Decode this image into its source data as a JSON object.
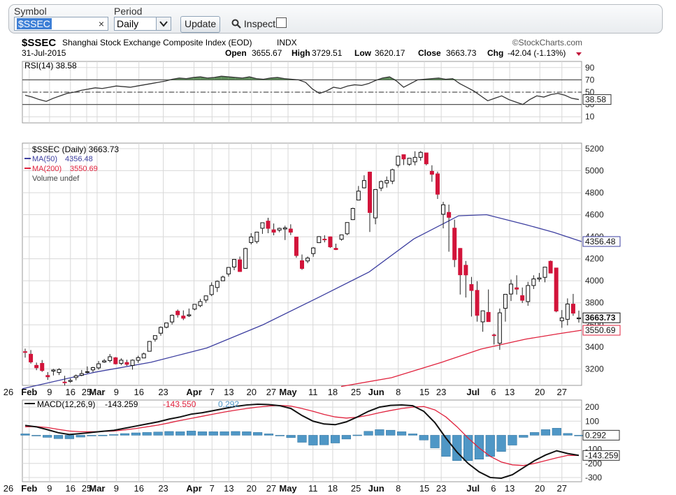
{
  "toolbar": {
    "symbol_label": "Symbol",
    "symbol_value": "$SSEC",
    "clear_glyph": "×",
    "period_label": "Period",
    "period_value": "Daily",
    "period_options": [
      "Daily"
    ],
    "update_label": "Update",
    "inspect_label": "Inspect"
  },
  "header": {
    "title": "$SSEC",
    "subtitle": "Shanghai Stock Exchange Composite Index (EOD)",
    "exchange": "INDX",
    "brand": "©StockCharts.com",
    "date": "31-Jul-2015",
    "open_label": "Open",
    "open": "3655.67",
    "high_label": "High",
    "high": "3729.51",
    "low_label": "Low",
    "low": "3620.17",
    "close_label": "Close",
    "close": "3663.73",
    "chg_label": "Chg",
    "chg": "-42.04 (-1.13%)"
  },
  "colors": {
    "up": "#ffffff",
    "down": "#d2143a",
    "ma50": "#3d3fa0",
    "ma200": "#e0223d",
    "rsi_fill": "#5e8c5a",
    "histogram": "#4f97c6",
    "grid": "#d8d8d8"
  },
  "chart_data": [
    {
      "type": "line",
      "title": "RSI(14) 38.58",
      "ylim": [
        0,
        100
      ],
      "y_ticks": [
        90,
        70,
        50,
        30,
        10
      ],
      "reference_lines": [
        70,
        50,
        30
      ],
      "last_value_label": "38.58",
      "x_dates_approx": [
        "2015-01-26",
        "2015-07-31"
      ],
      "values": [
        45,
        42,
        38,
        35,
        40,
        44,
        48,
        50,
        53,
        55,
        57,
        56,
        58,
        60,
        59,
        58,
        60,
        62,
        64,
        66,
        68,
        71,
        73,
        72,
        74,
        75,
        73,
        74,
        76,
        75,
        74,
        73,
        75,
        72,
        71,
        73,
        74,
        72,
        71,
        70,
        66,
        55,
        48,
        52,
        58,
        56,
        60,
        62,
        61,
        64,
        69,
        73,
        75,
        68,
        58,
        64,
        70,
        71,
        72,
        73,
        71,
        72,
        64,
        58,
        52,
        44,
        36,
        40,
        44,
        38,
        34,
        30,
        38,
        44,
        42,
        46,
        48,
        45,
        40,
        38
      ]
    },
    {
      "type": "candlestick",
      "title": "$SSEC (Daily) 3663.73",
      "legend": [
        {
          "name": "MA(50)",
          "value": "4356.48"
        },
        {
          "name": "MA(200)",
          "value": "3550.69"
        },
        {
          "name": "Volume undef",
          "value": ""
        }
      ],
      "ylim": [
        3050,
        5250
      ],
      "y_ticks": [
        5200,
        5000,
        4800,
        4600,
        4400,
        4200,
        4000,
        3800,
        3600,
        3400,
        3200
      ],
      "x_tick_labels": [
        "26",
        "Feb",
        "9",
        "16",
        "25",
        "Mar",
        "9",
        "16",
        "23",
        "Apr",
        "7",
        "13",
        "20",
        "27",
        "May",
        "11",
        "18",
        "25",
        "Jun",
        "8",
        "15",
        "23",
        "Jul",
        "6",
        "13",
        "20",
        "27"
      ],
      "price_tags": [
        "4356.48",
        "3663.73",
        "3550.69"
      ],
      "candles": [
        {
          "o": 3356,
          "h": 3384,
          "l": 3302,
          "c": 3354
        },
        {
          "o": 3333,
          "h": 3371,
          "l": 3248,
          "c": 3263
        },
        {
          "o": 3232,
          "h": 3257,
          "l": 3188,
          "c": 3210
        },
        {
          "o": 3250,
          "h": 3280,
          "l": 3173,
          "c": 3185
        },
        {
          "o": 3140,
          "h": 3171,
          "l": 3100,
          "c": 3128
        },
        {
          "o": 3180,
          "h": 3200,
          "l": 3140,
          "c": 3190
        },
        {
          "o": 3167,
          "h": 3206,
          "l": 3144,
          "c": 3194
        },
        {
          "o": 3080,
          "h": 3137,
          "l": 3049,
          "c": 3076
        },
        {
          "o": 3086,
          "h": 3113,
          "l": 3074,
          "c": 3095
        },
        {
          "o": 3121,
          "h": 3149,
          "l": 3096,
          "c": 3137
        },
        {
          "o": 3142,
          "h": 3190,
          "l": 3133,
          "c": 3157
        },
        {
          "o": 3173,
          "h": 3222,
          "l": 3159,
          "c": 3174
        },
        {
          "o": 3191,
          "h": 3219,
          "l": 3170,
          "c": 3211
        },
        {
          "o": 3209,
          "h": 3272,
          "l": 3193,
          "c": 3246
        },
        {
          "o": 3262,
          "h": 3289,
          "l": 3255,
          "c": 3273
        },
        {
          "o": 3275,
          "h": 3335,
          "l": 3258,
          "c": 3310
        },
        {
          "o": 3301,
          "h": 3307,
          "l": 3240,
          "c": 3246
        },
        {
          "o": 3250,
          "h": 3296,
          "l": 3234,
          "c": 3279
        },
        {
          "o": 3258,
          "h": 3283,
          "l": 3227,
          "c": 3241
        },
        {
          "o": 3231,
          "h": 3286,
          "l": 3193,
          "c": 3279
        },
        {
          "o": 3278,
          "h": 3319,
          "l": 3255,
          "c": 3302
        },
        {
          "o": 3299,
          "h": 3348,
          "l": 3299,
          "c": 3336
        },
        {
          "o": 3360,
          "h": 3453,
          "l": 3357,
          "c": 3449
        },
        {
          "o": 3469,
          "h": 3502,
          "l": 3447,
          "c": 3502
        },
        {
          "o": 3524,
          "h": 3586,
          "l": 3501,
          "c": 3577
        },
        {
          "o": 3578,
          "h": 3617,
          "l": 3568,
          "c": 3617
        },
        {
          "o": 3626,
          "h": 3694,
          "l": 3603,
          "c": 3687
        },
        {
          "o": 3724,
          "h": 3739,
          "l": 3666,
          "c": 3691
        },
        {
          "o": 3680,
          "h": 3731,
          "l": 3643,
          "c": 3660
        },
        {
          "o": 3682,
          "h": 3748,
          "l": 3671,
          "c": 3691
        },
        {
          "o": 3743,
          "h": 3786,
          "l": 3732,
          "c": 3786
        },
        {
          "o": 3774,
          "h": 3835,
          "l": 3760,
          "c": 3811
        },
        {
          "o": 3825,
          "h": 3866,
          "l": 3800,
          "c": 3863
        },
        {
          "o": 3875,
          "h": 3986,
          "l": 3861,
          "c": 3957
        },
        {
          "o": 3939,
          "h": 4003,
          "l": 3898,
          "c": 3995
        },
        {
          "o": 4000,
          "h": 4047,
          "l": 3998,
          "c": 4034
        },
        {
          "o": 4062,
          "h": 4123,
          "l": 4038,
          "c": 4121
        },
        {
          "o": 4125,
          "h": 4197,
          "l": 4096,
          "c": 4194
        },
        {
          "o": 4190,
          "h": 4220,
          "l": 4080,
          "c": 4084
        },
        {
          "o": 4113,
          "h": 4300,
          "l": 4108,
          "c": 4293
        },
        {
          "o": 4347,
          "h": 4432,
          "l": 4330,
          "c": 4398
        },
        {
          "o": 4356,
          "h": 4444,
          "l": 4338,
          "c": 4442
        },
        {
          "o": 4477,
          "h": 4527,
          "l": 4426,
          "c": 4527
        },
        {
          "o": 4542,
          "h": 4572,
          "l": 4432,
          "c": 4476
        },
        {
          "o": 4463,
          "h": 4520,
          "l": 4413,
          "c": 4441
        },
        {
          "o": 4460,
          "h": 4483,
          "l": 4441,
          "c": 4476
        },
        {
          "o": 4470,
          "h": 4500,
          "l": 4370,
          "c": 4480
        },
        {
          "o": 4470,
          "h": 4513,
          "l": 4415,
          "c": 4441
        },
        {
          "o": 4397,
          "h": 4398,
          "l": 4209,
          "c": 4229
        },
        {
          "o": 4182,
          "h": 4239,
          "l": 4099,
          "c": 4112
        },
        {
          "o": 4180,
          "h": 4221,
          "l": 4160,
          "c": 4206
        },
        {
          "o": 4247,
          "h": 4306,
          "l": 4218,
          "c": 4298
        },
        {
          "o": 4346,
          "h": 4405,
          "l": 4346,
          "c": 4401
        },
        {
          "o": 4378,
          "h": 4413,
          "l": 4349,
          "c": 4375
        },
        {
          "o": 4399,
          "h": 4402,
          "l": 4298,
          "c": 4308
        },
        {
          "o": 4295,
          "h": 4337,
          "l": 4279,
          "c": 4283
        },
        {
          "o": 4377,
          "h": 4417,
          "l": 4364,
          "c": 4417
        },
        {
          "o": 4427,
          "h": 4529,
          "l": 4414,
          "c": 4529
        },
        {
          "o": 4555,
          "h": 4663,
          "l": 4552,
          "c": 4657
        },
        {
          "o": 4733,
          "h": 4861,
          "l": 4731,
          "c": 4814
        },
        {
          "o": 4844,
          "h": 4958,
          "l": 4838,
          "c": 4910
        },
        {
          "o": 4987,
          "h": 4991,
          "l": 4443,
          "c": 4620
        },
        {
          "o": 4571,
          "h": 4832,
          "l": 4513,
          "c": 4829
        },
        {
          "o": 4842,
          "h": 4911,
          "l": 4815,
          "c": 4901
        },
        {
          "o": 4888,
          "h": 4947,
          "l": 4846,
          "c": 4910
        },
        {
          "o": 4905,
          "h": 5018,
          "l": 4878,
          "c": 5008
        },
        {
          "o": 5050,
          "h": 5131,
          "l": 5031,
          "c": 5131
        },
        {
          "o": 5145,
          "h": 5147,
          "l": 5051,
          "c": 5106
        },
        {
          "o": 5058,
          "h": 5115,
          "l": 5045,
          "c": 5113
        },
        {
          "o": 5080,
          "h": 5176,
          "l": 5048,
          "c": 5121
        },
        {
          "o": 5121,
          "h": 5178,
          "l": 5090,
          "c": 5166
        },
        {
          "o": 5161,
          "h": 5164,
          "l": 5048,
          "c": 5062
        },
        {
          "o": 4994,
          "h": 5049,
          "l": 4899,
          "c": 4967
        },
        {
          "o": 4971,
          "h": 4991,
          "l": 4743,
          "c": 4786
        },
        {
          "o": 4604,
          "h": 4717,
          "l": 4476,
          "c": 4690
        },
        {
          "o": 4621,
          "h": 4692,
          "l": 4264,
          "c": 4576
        },
        {
          "o": 4478,
          "h": 4555,
          "l": 4124,
          "c": 4192
        },
        {
          "o": 4294,
          "h": 4297,
          "l": 3875,
          "c": 4054
        },
        {
          "o": 4141,
          "h": 4180,
          "l": 3848,
          "c": 4053
        },
        {
          "o": 3966,
          "h": 4035,
          "l": 3675,
          "c": 3912
        },
        {
          "o": 3913,
          "h": 3996,
          "l": 3629,
          "c": 3686
        },
        {
          "o": 3627,
          "h": 3725,
          "l": 3537,
          "c": 3727
        },
        {
          "o": 3713,
          "h": 3921,
          "l": 3648,
          "c": 3629
        },
        {
          "o": 3508,
          "h": 3520,
          "l": 3421,
          "c": 3507
        },
        {
          "o": 3433,
          "h": 3748,
          "l": 3373,
          "c": 3709
        },
        {
          "o": 3750,
          "h": 3877,
          "l": 3629,
          "c": 3877
        },
        {
          "o": 3880,
          "h": 4011,
          "l": 3816,
          "c": 3970
        },
        {
          "o": 3936,
          "h": 4050,
          "l": 3874,
          "c": 3924
        },
        {
          "o": 3865,
          "h": 3939,
          "l": 3798,
          "c": 3823
        },
        {
          "o": 3811,
          "h": 3990,
          "l": 3773,
          "c": 3957
        },
        {
          "o": 3957,
          "h": 4050,
          "l": 3925,
          "c": 4017
        },
        {
          "o": 4016,
          "h": 4071,
          "l": 3991,
          "c": 4026
        },
        {
          "o": 4031,
          "h": 4124,
          "l": 3986,
          "c": 4124
        },
        {
          "o": 4177,
          "h": 4184,
          "l": 4070,
          "c": 4070
        },
        {
          "o": 4116,
          "h": 4116,
          "l": 3714,
          "c": 3725
        },
        {
          "o": 3637,
          "h": 3734,
          "l": 3573,
          "c": 3663
        },
        {
          "o": 3650,
          "h": 3840,
          "l": 3595,
          "c": 3789
        },
        {
          "o": 3788,
          "h": 3881,
          "l": 3682,
          "c": 3706
        },
        {
          "o": 3655,
          "h": 3729,
          "l": 3620,
          "c": 3663
        }
      ],
      "ma50": [
        {
          "x": 0.0,
          "y": 3020
        },
        {
          "x": 0.13,
          "y": 3170
        },
        {
          "x": 0.23,
          "y": 3260
        },
        {
          "x": 0.33,
          "y": 3390
        },
        {
          "x": 0.43,
          "y": 3600
        },
        {
          "x": 0.53,
          "y": 3850
        },
        {
          "x": 0.62,
          "y": 4080
        },
        {
          "x": 0.7,
          "y": 4380
        },
        {
          "x": 0.78,
          "y": 4590
        },
        {
          "x": 0.83,
          "y": 4600
        },
        {
          "x": 0.9,
          "y": 4510
        },
        {
          "x": 0.95,
          "y": 4440
        },
        {
          "x": 1.0,
          "y": 4356
        }
      ],
      "ma200": [
        {
          "x": 0.57,
          "y": 3040
        },
        {
          "x": 0.66,
          "y": 3120
        },
        {
          "x": 0.75,
          "y": 3260
        },
        {
          "x": 0.82,
          "y": 3380
        },
        {
          "x": 0.9,
          "y": 3470
        },
        {
          "x": 0.96,
          "y": 3520
        },
        {
          "x": 1.0,
          "y": 3551
        }
      ]
    },
    {
      "type": "line",
      "title": "MACD(12,26,9)",
      "legend_values": [
        "-143.259",
        "-143.550",
        "0.292"
      ],
      "ylim": [
        -330,
        250
      ],
      "y_ticks": [
        200,
        100,
        -100,
        -200,
        -300
      ],
      "price_tags": [
        "0.292",
        "-143.259"
      ],
      "series": [
        {
          "name": "MACD",
          "values": [
            70,
            60,
            40,
            18,
            5,
            12,
            20,
            28,
            35,
            50,
            65,
            80,
            95,
            115,
            130,
            150,
            160,
            175,
            190,
            205,
            215,
            220,
            218,
            210,
            190,
            140,
            100,
            80,
            75,
            95,
            130,
            170,
            200,
            212,
            215,
            210,
            170,
            90,
            -20,
            -120,
            -200,
            -260,
            -300,
            -305,
            -280,
            -230,
            -180,
            -140,
            -110,
            -130,
            -143
          ]
        },
        {
          "name": "Signal",
          "values": [
            60,
            62,
            55,
            42,
            30,
            25,
            25,
            27,
            30,
            38,
            48,
            60,
            72,
            88,
            105,
            120,
            135,
            150,
            165,
            178,
            190,
            200,
            208,
            212,
            207,
            190,
            170,
            148,
            130,
            122,
            128,
            142,
            160,
            176,
            190,
            200,
            204,
            180,
            130,
            60,
            -20,
            -90,
            -150,
            -190,
            -210,
            -215,
            -200,
            -180,
            -160,
            -143,
            -143.5
          ]
        },
        {
          "name": "Histogram",
          "values": [
            10,
            -2,
            -15,
            -24,
            -25,
            -13,
            -5,
            1,
            5,
            12,
            17,
            20,
            23,
            27,
            25,
            30,
            25,
            25,
            25,
            27,
            25,
            20,
            10,
            -2,
            -17,
            -50,
            -70,
            -68,
            -55,
            -27,
            2,
            28,
            40,
            36,
            25,
            10,
            -34,
            -90,
            -150,
            -180,
            -180,
            -170,
            -150,
            -115,
            -70,
            -15,
            20,
            40,
            50,
            13,
            0.3
          ]
        }
      ]
    }
  ]
}
